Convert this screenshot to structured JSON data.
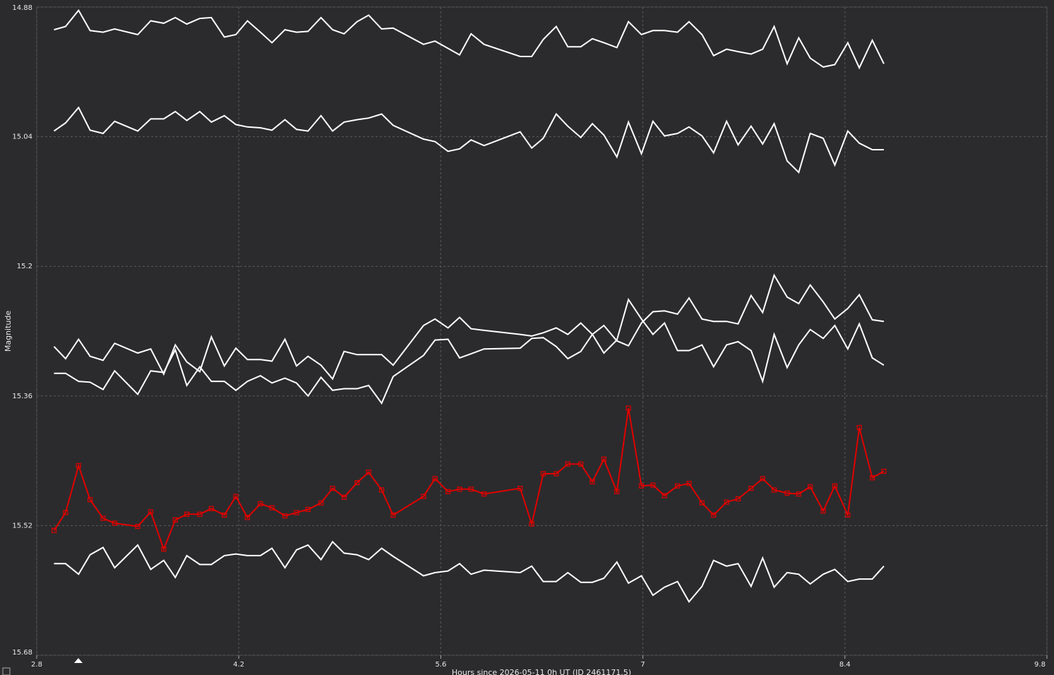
{
  "chart_data": {
    "type": "line",
    "x_label": "Hours since 2026-05-11 0h UT (JD 2461171.5)",
    "y_label": "Magnitude",
    "x": [
      2.92,
      3.0,
      3.09,
      3.17,
      3.26,
      3.34,
      3.5,
      3.59,
      3.68,
      3.76,
      3.84,
      3.93,
      4.01,
      4.1,
      4.18,
      4.26,
      4.35,
      4.43,
      4.52,
      4.6,
      4.68,
      4.77,
      4.85,
      4.93,
      5.02,
      5.1,
      5.19,
      5.27,
      5.48,
      5.56,
      5.65,
      5.73,
      5.81,
      5.9,
      6.15,
      6.23,
      6.31,
      6.4,
      6.48,
      6.57,
      6.65,
      6.73,
      6.82,
      6.9,
      6.99,
      7.07,
      7.15,
      7.24,
      7.32,
      7.41,
      7.49,
      7.58,
      7.66,
      7.75,
      7.83,
      7.91,
      8.0,
      8.08,
      8.16,
      8.25,
      8.33,
      8.42,
      8.5,
      8.59,
      8.67
    ],
    "series": [
      {
        "color": "#ffffff",
        "values": [
          14.908,
          14.904,
          14.884,
          14.909,
          14.911,
          14.907,
          14.914,
          14.897,
          14.9,
          14.893,
          14.901,
          14.894,
          14.893,
          14.917,
          14.914,
          14.897,
          14.911,
          14.924,
          14.908,
          14.911,
          14.91,
          14.893,
          14.908,
          14.913,
          14.898,
          14.89,
          14.907,
          14.906,
          14.926,
          14.922,
          14.931,
          14.939,
          14.913,
          14.926,
          14.941,
          14.941,
          14.92,
          14.904,
          14.929,
          14.929,
          14.919,
          14.924,
          14.93,
          14.898,
          14.914,
          14.909,
          14.909,
          14.911,
          14.898,
          14.914,
          14.94,
          14.932,
          14.935,
          14.938,
          14.932,
          14.904,
          14.95,
          14.918,
          14.943,
          14.954,
          14.951,
          14.924,
          14.955,
          14.921,
          14.95
        ]
      },
      {
        "color": "#ffffff",
        "values": [
          15.033,
          15.023,
          15.004,
          15.032,
          15.036,
          15.021,
          15.033,
          15.018,
          15.018,
          15.009,
          15.02,
          15.009,
          15.022,
          15.014,
          15.025,
          15.028,
          15.029,
          15.032,
          15.019,
          15.031,
          15.033,
          15.014,
          15.033,
          15.022,
          15.019,
          15.017,
          15.012,
          15.026,
          15.043,
          15.046,
          15.058,
          15.055,
          15.044,
          15.051,
          15.034,
          15.054,
          15.042,
          15.012,
          15.027,
          15.041,
          15.024,
          15.038,
          15.065,
          15.022,
          15.061,
          15.021,
          15.039,
          15.036,
          15.028,
          15.039,
          15.06,
          15.021,
          15.05,
          15.027,
          15.049,
          15.024,
          15.07,
          15.084,
          15.036,
          15.042,
          15.075,
          15.033,
          15.048,
          15.056,
          15.056
        ]
      },
      {
        "color": "#ffffff",
        "values": [
          15.299,
          15.314,
          15.29,
          15.311,
          15.316,
          15.295,
          15.307,
          15.302,
          15.333,
          15.297,
          15.318,
          15.33,
          15.287,
          15.323,
          15.301,
          15.315,
          15.315,
          15.317,
          15.29,
          15.323,
          15.311,
          15.322,
          15.339,
          15.305,
          15.309,
          15.309,
          15.309,
          15.322,
          15.273,
          15.265,
          15.276,
          15.263,
          15.277,
          15.279,
          15.284,
          15.286,
          15.282,
          15.276,
          15.284,
          15.27,
          15.284,
          15.307,
          15.291,
          15.241,
          15.265,
          15.284,
          15.27,
          15.304,
          15.304,
          15.297,
          15.324,
          15.297,
          15.293,
          15.304,
          15.342,
          15.284,
          15.325,
          15.297,
          15.278,
          15.289,
          15.273,
          15.302,
          15.271,
          15.313,
          15.322
        ]
      },
      {
        "color": "#ffffff",
        "values": [
          15.332,
          15.332,
          15.342,
          15.343,
          15.352,
          15.329,
          15.358,
          15.329,
          15.331,
          15.303,
          15.347,
          15.324,
          15.342,
          15.342,
          15.353,
          15.342,
          15.335,
          15.344,
          15.338,
          15.344,
          15.36,
          15.337,
          15.353,
          15.351,
          15.351,
          15.347,
          15.369,
          15.336,
          15.31,
          15.291,
          15.29,
          15.313,
          15.308,
          15.302,
          15.301,
          15.289,
          15.288,
          15.299,
          15.314,
          15.305,
          15.284,
          15.273,
          15.292,
          15.298,
          15.27,
          15.256,
          15.255,
          15.259,
          15.239,
          15.265,
          15.268,
          15.268,
          15.271,
          15.236,
          15.257,
          15.211,
          15.238,
          15.246,
          15.223,
          15.244,
          15.265,
          15.252,
          15.235,
          15.266,
          15.268
        ]
      },
      {
        "color": "#e00000",
        "marker": "square",
        "values": [
          15.526,
          15.504,
          15.446,
          15.488,
          15.511,
          15.517,
          15.521,
          15.503,
          15.549,
          15.513,
          15.506,
          15.506,
          15.499,
          15.507,
          15.484,
          15.51,
          15.493,
          15.498,
          15.508,
          15.504,
          15.5,
          15.492,
          15.474,
          15.485,
          15.467,
          15.454,
          15.476,
          15.507,
          15.484,
          15.462,
          15.478,
          15.475,
          15.475,
          15.481,
          15.474,
          15.518,
          15.456,
          15.456,
          15.444,
          15.444,
          15.466,
          15.438,
          15.478,
          15.375,
          15.471,
          15.47,
          15.483,
          15.471,
          15.468,
          15.492,
          15.507,
          15.491,
          15.487,
          15.474,
          15.462,
          15.476,
          15.48,
          15.481,
          15.472,
          15.502,
          15.471,
          15.507,
          15.399,
          15.461,
          15.453
        ]
      },
      {
        "color": "#ffffff",
        "values": [
          15.567,
          15.567,
          15.58,
          15.556,
          15.547,
          15.572,
          15.544,
          15.574,
          15.563,
          15.584,
          15.557,
          15.568,
          15.568,
          15.557,
          15.555,
          15.557,
          15.557,
          15.548,
          15.572,
          15.55,
          15.544,
          15.562,
          15.54,
          15.554,
          15.556,
          15.562,
          15.548,
          15.558,
          15.582,
          15.578,
          15.576,
          15.567,
          15.58,
          15.575,
          15.578,
          15.57,
          15.589,
          15.589,
          15.578,
          15.59,
          15.59,
          15.585,
          15.565,
          15.591,
          15.582,
          15.606,
          15.596,
          15.589,
          15.614,
          15.595,
          15.563,
          15.57,
          15.567,
          15.595,
          15.56,
          15.596,
          15.578,
          15.58,
          15.592,
          15.58,
          15.574,
          15.589,
          15.586,
          15.586,
          15.57
        ]
      }
    ],
    "xlim": [
      2.8,
      9.8
    ],
    "ylim": [
      14.88,
      15.68
    ],
    "y_inverted": true,
    "xticks": [
      2.8,
      4.2,
      5.6,
      7,
      8.4,
      9.8
    ],
    "yticks": [
      14.88,
      15.04,
      15.2,
      15.36,
      15.52,
      15.68
    ],
    "grid": true
  }
}
